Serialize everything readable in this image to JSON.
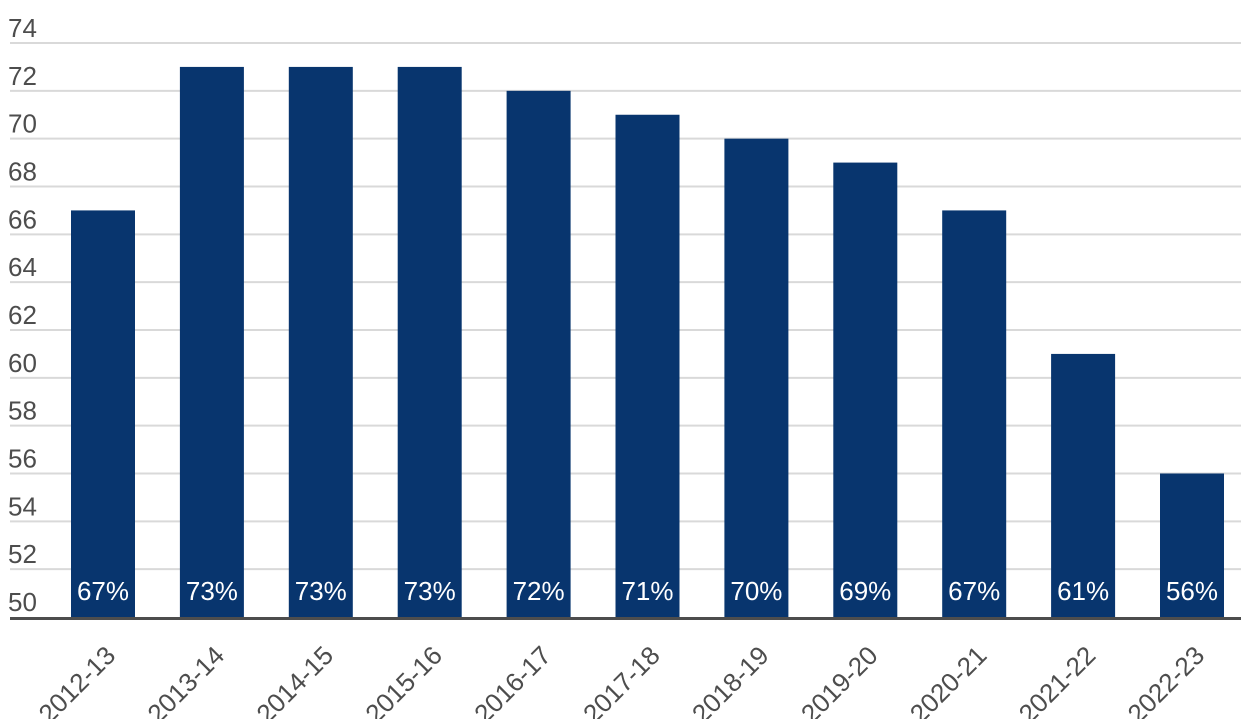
{
  "chart_data": {
    "type": "bar",
    "categories": [
      "2012-13",
      "2013-14",
      "2014-15",
      "2015-16",
      "2016-17",
      "2017-18",
      "2018-19",
      "2019-20",
      "2020-21",
      "2021-22",
      "2022-23"
    ],
    "values": [
      67,
      73,
      73,
      73,
      72,
      71,
      70,
      69,
      67,
      61,
      56
    ],
    "data_labels": [
      "67%",
      "73%",
      "73%",
      "73%",
      "72%",
      "71%",
      "70%",
      "69%",
      "67%",
      "61%",
      "56%"
    ],
    "title": "",
    "xlabel": "",
    "ylabel": "",
    "ylim": [
      50,
      74
    ],
    "yticks": [
      50,
      52,
      54,
      56,
      58,
      60,
      62,
      64,
      66,
      68,
      70,
      72,
      74
    ],
    "grid": true,
    "legend": "none",
    "colors": {
      "bar": "#08356e",
      "gridline": "#d9d9d9",
      "axis": "#4d4d4d",
      "tick_text": "#4d4d4d",
      "bar_label_text": "#ffffff"
    }
  }
}
